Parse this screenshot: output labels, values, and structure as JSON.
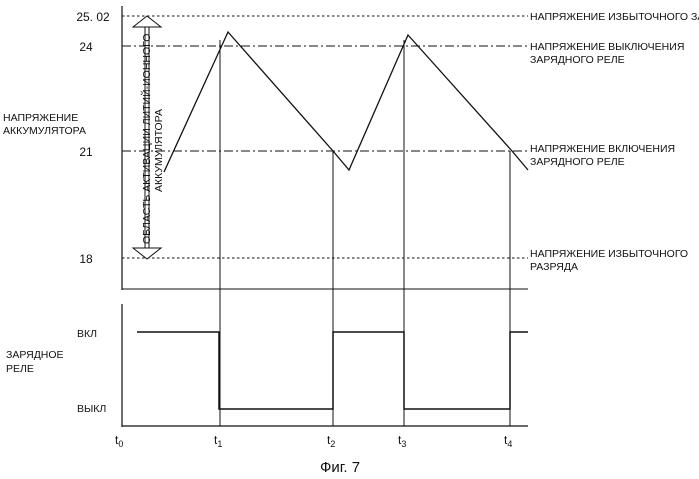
{
  "voltage_axis": {
    "label_line1": "НАПРЯЖЕНИЕ",
    "label_line2": "АККУМУЛЯТОРА",
    "ticks": [
      "25. 02",
      "24",
      "21",
      "18"
    ]
  },
  "thresholds": {
    "overcharge": "НАПРЯЖЕНИЕ ИЗБЫТОЧНОГО ЗАРЯДА",
    "relay_off_line1": "НАПРЯЖЕНИЕ ВЫКЛЮЧЕНИЯ",
    "relay_off_line2": "ЗАРЯДНОГО РЕЛЕ",
    "relay_on_line1": "НАПРЯЖЕНИЕ ВКЛЮЧЕНИЯ",
    "relay_on_line2": "ЗАРЯДНОГО РЕЛЕ",
    "overdischarge_line1": "НАПРЯЖЕНИЕ ИЗБЫТОЧНОГО",
    "overdischarge_line2": "РАЗРЯДА"
  },
  "activation_region": {
    "line1": "ОБЛАСТЬ АКТИВАЦИИ ЛИТИЙ-ИОННОГО",
    "line2": "АККУМУЛЯТОРА"
  },
  "relay_axis": {
    "label_line1": "ЗАРЯДНОЕ",
    "label_line2": "РЕЛЕ",
    "on_label": "ВКЛ",
    "off_label": "ВЫКЛ"
  },
  "time_ticks": [
    {
      "base": "t",
      "sub": "0"
    },
    {
      "base": "t",
      "sub": "1"
    },
    {
      "base": "t",
      "sub": "2"
    },
    {
      "base": "t",
      "sub": "3"
    },
    {
      "base": "t",
      "sub": "4"
    }
  ],
  "caption": "Фиг. 7"
}
